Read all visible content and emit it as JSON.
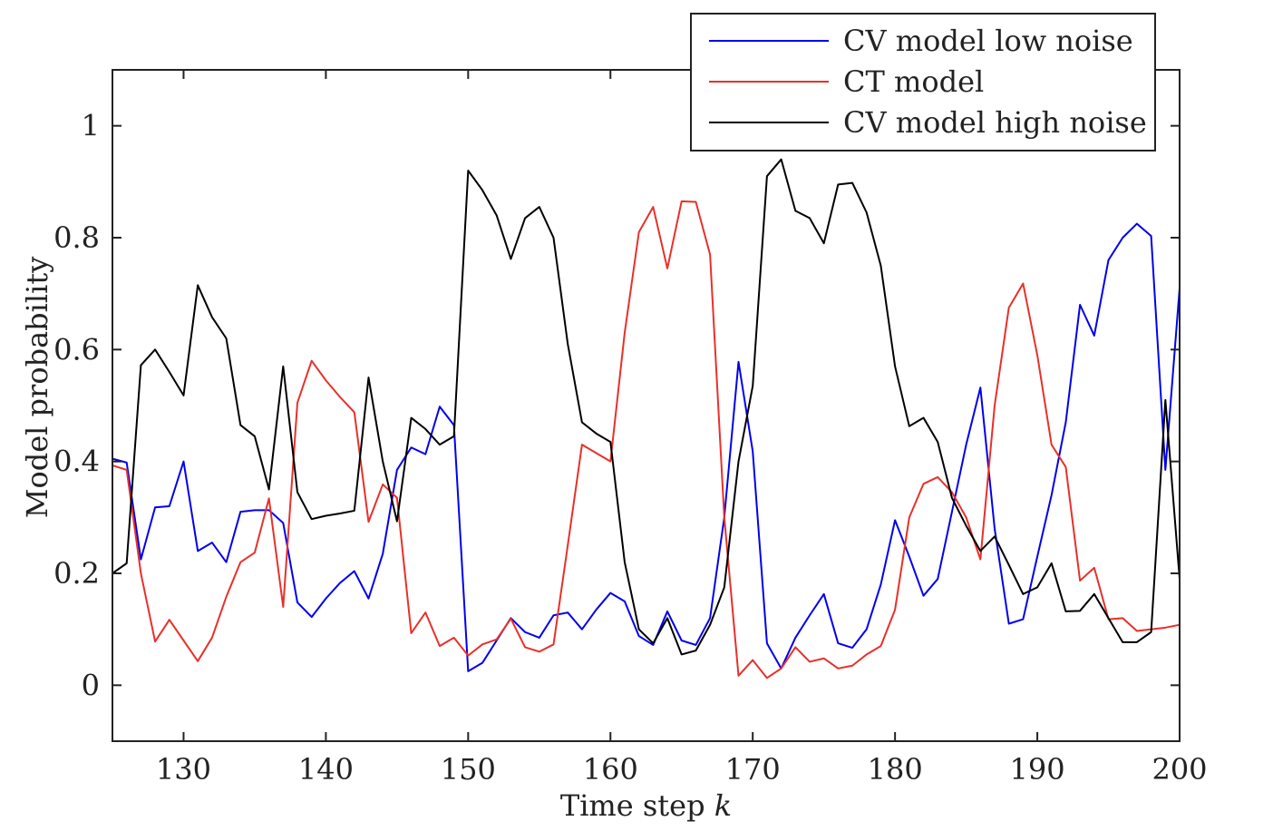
{
  "chart_data": {
    "type": "line",
    "xlabel": "Time step k",
    "ylabel": "Model probability",
    "xlim": [
      125,
      200
    ],
    "ylim": [
      -0.1,
      1.1
    ],
    "xticks": [
      130,
      140,
      150,
      160,
      170,
      180,
      190,
      200
    ],
    "yticks": [
      0,
      0.2,
      0.4,
      0.6,
      0.8,
      1
    ],
    "ytick_labels": [
      "0",
      "0.2",
      "0.4",
      "0.6",
      "0.8",
      "1"
    ],
    "grid": false,
    "legend_position": "top-right",
    "x": [
      125,
      126,
      127,
      128,
      129,
      130,
      131,
      132,
      133,
      134,
      135,
      136,
      137,
      138,
      139,
      140,
      141,
      142,
      143,
      144,
      145,
      146,
      147,
      148,
      149,
      150,
      151,
      152,
      153,
      154,
      155,
      156,
      157,
      158,
      159,
      160,
      161,
      162,
      163,
      164,
      165,
      166,
      167,
      168,
      169,
      170,
      171,
      172,
      173,
      174,
      175,
      176,
      177,
      178,
      179,
      180,
      181,
      182,
      183,
      184,
      185,
      186,
      187,
      188,
      189,
      190,
      191,
      192,
      193,
      194,
      195,
      196,
      197,
      198,
      199,
      200
    ],
    "series": [
      {
        "name": "CV model low noise",
        "color": "#0000ee",
        "values": [
          0.405,
          0.398,
          0.225,
          0.318,
          0.32,
          0.4,
          0.24,
          0.255,
          0.22,
          0.31,
          0.313,
          0.313,
          0.29,
          0.148,
          0.122,
          0.155,
          0.183,
          0.204,
          0.155,
          0.235,
          0.385,
          0.425,
          0.413,
          0.498,
          0.465,
          0.025,
          0.04,
          0.08,
          0.12,
          0.095,
          0.085,
          0.125,
          0.13,
          0.1,
          0.135,
          0.165,
          0.15,
          0.088,
          0.072,
          0.132,
          0.08,
          0.072,
          0.12,
          0.3,
          0.578,
          0.418,
          0.075,
          0.03,
          0.085,
          0.125,
          0.163,
          0.075,
          0.067,
          0.1,
          0.18,
          0.295,
          0.23,
          0.16,
          0.19,
          0.31,
          0.43,
          0.532,
          0.28,
          0.11,
          0.118,
          0.23,
          0.34,
          0.47,
          0.68,
          0.625,
          0.76,
          0.8,
          0.825,
          0.803,
          0.385,
          0.71
        ]
      },
      {
        "name": "CT model",
        "color": "#e8302a",
        "values": [
          0.393,
          0.385,
          0.2,
          0.078,
          0.117,
          0.08,
          0.043,
          0.085,
          0.158,
          0.22,
          0.237,
          0.334,
          0.14,
          0.505,
          0.58,
          0.545,
          0.515,
          0.488,
          0.292,
          0.359,
          0.335,
          0.093,
          0.13,
          0.07,
          0.085,
          0.053,
          0.073,
          0.082,
          0.119,
          0.068,
          0.06,
          0.073,
          0.25,
          0.43,
          0.415,
          0.4,
          0.63,
          0.81,
          0.855,
          0.745,
          0.865,
          0.864,
          0.77,
          0.3,
          0.017,
          0.045,
          0.013,
          0.03,
          0.068,
          0.042,
          0.048,
          0.03,
          0.035,
          0.055,
          0.07,
          0.135,
          0.3,
          0.36,
          0.372,
          0.345,
          0.3,
          0.225,
          0.5,
          0.675,
          0.718,
          0.59,
          0.43,
          0.39,
          0.187,
          0.21,
          0.118,
          0.12,
          0.097,
          0.1,
          0.103,
          0.108
        ]
      },
      {
        "name": "CV model high noise",
        "color": "#000000",
        "values": [
          0.2,
          0.218,
          0.572,
          0.6,
          0.56,
          0.518,
          0.715,
          0.658,
          0.62,
          0.465,
          0.445,
          0.35,
          0.57,
          0.345,
          0.297,
          0.303,
          0.307,
          0.312,
          0.55,
          0.4,
          0.293,
          0.478,
          0.458,
          0.43,
          0.445,
          0.92,
          0.885,
          0.84,
          0.762,
          0.835,
          0.855,
          0.8,
          0.61,
          0.47,
          0.45,
          0.435,
          0.22,
          0.1,
          0.075,
          0.12,
          0.055,
          0.062,
          0.108,
          0.175,
          0.4,
          0.535,
          0.91,
          0.94,
          0.848,
          0.835,
          0.79,
          0.895,
          0.898,
          0.845,
          0.75,
          0.57,
          0.463,
          0.478,
          0.435,
          0.335,
          0.285,
          0.24,
          0.266,
          0.215,
          0.163,
          0.175,
          0.218,
          0.132,
          0.133,
          0.163,
          0.12,
          0.077,
          0.077,
          0.095,
          0.51,
          0.19
        ]
      }
    ]
  }
}
